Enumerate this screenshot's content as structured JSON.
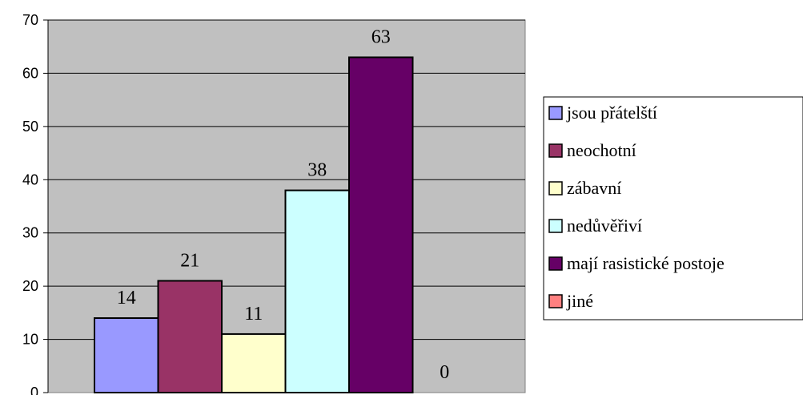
{
  "chart_data": {
    "type": "bar",
    "title": "",
    "xlabel": "",
    "ylabel": "",
    "ylim": [
      0,
      70
    ],
    "yticks": [
      0,
      10,
      20,
      30,
      40,
      50,
      60,
      70
    ],
    "grid": true,
    "legend_position": "right",
    "plot_background": "#C0C0C0",
    "series": [
      {
        "name": "jsou přátelští",
        "value": 14,
        "color": "#9999FF"
      },
      {
        "name": "neochotní",
        "value": 21,
        "color": "#993366"
      },
      {
        "name": "zábavní",
        "value": 11,
        "color": "#FFFFCC"
      },
      {
        "name": "nedůvěřiví",
        "value": 38,
        "color": "#CCFFFF"
      },
      {
        "name": "mají rasistické postoje",
        "value": 63,
        "color": "#660066"
      },
      {
        "name": "jiné",
        "value": 0,
        "color": "#FF8080"
      }
    ]
  }
}
